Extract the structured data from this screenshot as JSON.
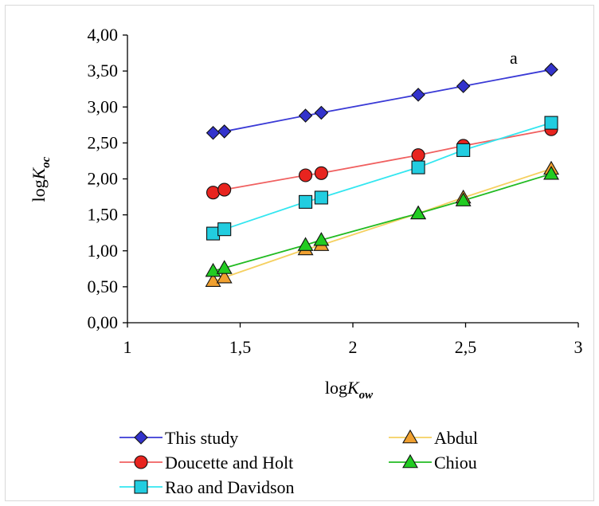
{
  "chart_data": {
    "type": "line",
    "annotation": "a",
    "xlabel": {
      "base": "log",
      "italic": "K",
      "sub": "ow"
    },
    "ylabel": {
      "base": "log",
      "italic": "K",
      "sub": "oc"
    },
    "xlim": [
      1,
      3
    ],
    "ylim": [
      0,
      4
    ],
    "x_ticks": [
      1,
      1.5,
      2,
      2.5,
      3
    ],
    "x_tick_labels": [
      "1",
      "1,5",
      "2",
      "2,5",
      "3"
    ],
    "y_ticks": [
      0,
      0.5,
      1,
      1.5,
      2,
      2.5,
      3,
      3.5,
      4
    ],
    "y_tick_labels": [
      "0,00",
      "0,50",
      "1,00",
      "1,50",
      "2,00",
      "2,50",
      "3,00",
      "3,50",
      "4,00"
    ],
    "x": [
      1.38,
      1.43,
      1.79,
      1.86,
      2.29,
      2.49,
      2.88
    ],
    "series": [
      {
        "name": "This study",
        "color": "#3333cc",
        "line_color": "#3a3ad6",
        "marker": "diamond",
        "values": [
          2.64,
          2.66,
          2.88,
          2.92,
          3.17,
          3.29,
          3.52
        ]
      },
      {
        "name": "Doucette and Holt",
        "color": "#e8241f",
        "line_color": "#f06060",
        "marker": "circle",
        "values": [
          1.81,
          1.85,
          2.05,
          2.08,
          2.33,
          2.46,
          2.69
        ]
      },
      {
        "name": "Rao and Davidson",
        "color": "#22cde0",
        "line_color": "#33e6f0",
        "marker": "square",
        "values": [
          1.24,
          1.3,
          1.68,
          1.74,
          2.16,
          2.4,
          2.78
        ]
      },
      {
        "name": "Abdul",
        "color": "#f0a030",
        "line_color": "#f5d060",
        "marker": "triangle",
        "values": [
          0.58,
          0.63,
          1.02,
          1.08,
          1.52,
          1.74,
          2.14
        ]
      },
      {
        "name": "Chiou",
        "color": "#22cc22",
        "line_color": "#22bb22",
        "marker": "triangle",
        "values": [
          0.72,
          0.76,
          1.08,
          1.15,
          1.52,
          1.7,
          2.07
        ]
      }
    ],
    "grid": false,
    "legend": "bottom"
  }
}
